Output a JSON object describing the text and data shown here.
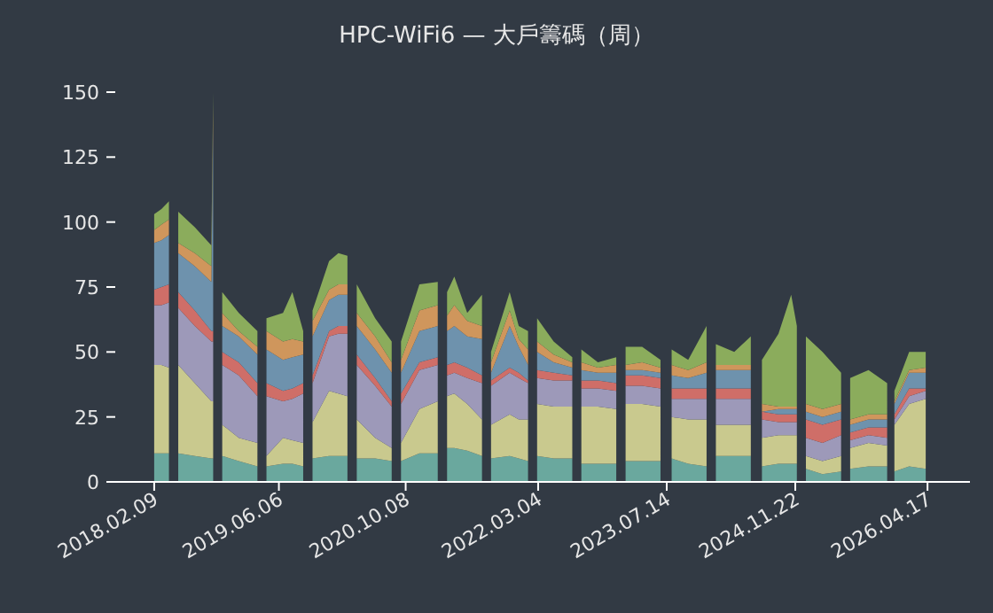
{
  "chart_data": {
    "type": "area",
    "stacked": true,
    "title": "HPC-WiFi6 — 大戶籌碼（周）",
    "x": [
      "2018-02-09",
      "2018-03-09",
      "2018-04-07",
      "2018-04-25",
      "2018-05-13",
      "2018-07-16",
      "2018-09-18",
      "2018-09-25",
      "2018-10-13",
      "2018-10-30",
      "2019-01-02",
      "2019-03-15",
      "2019-04-01",
      "2019-04-19",
      "2019-06-22",
      "2019-07-28",
      "2019-09-08",
      "2019-09-26",
      "2019-10-14",
      "2019-12-17",
      "2020-01-22",
      "2020-02-26",
      "2020-03-15",
      "2020-04-02",
      "2020-06-12",
      "2020-08-15",
      "2020-09-02",
      "2020-09-20",
      "2020-11-30",
      "2021-02-09",
      "2021-02-27",
      "2021-03-17",
      "2021-04-14",
      "2021-06-03",
      "2021-07-30",
      "2021-08-17",
      "2021-09-03",
      "2021-11-14",
      "2021-12-19",
      "2022-01-24",
      "2022-02-11",
      "2022-02-28",
      "2022-05-03",
      "2022-07-14",
      "2022-07-31",
      "2022-08-18",
      "2022-10-21",
      "2022-12-31",
      "2023-01-18",
      "2023-02-05",
      "2023-04-10",
      "2023-06-20",
      "2023-07-12",
      "2023-08-02",
      "2023-10-05",
      "2023-12-15",
      "2024-01-02",
      "2024-01-20",
      "2024-03-31",
      "2024-06-03",
      "2024-06-24",
      "2024-07-16",
      "2024-09-18",
      "2024-11-06",
      "2024-11-28",
      "2024-12-16",
      "2025-01-02",
      "2025-03-07",
      "2025-05-18",
      "2025-06-04",
      "2025-06-22",
      "2025-09-01",
      "2025-11-12",
      "2025-11-26",
      "2025-12-10",
      "2026-02-05",
      "2026-04-10"
    ],
    "xlim": [
      "2017-08-22",
      "2026-09-28"
    ],
    "xticks": [
      {
        "value": "2018-02-09",
        "label": "2018.02.09"
      },
      {
        "value": "2019-06-06",
        "label": "2019.06.06"
      },
      {
        "value": "2020-10-08",
        "label": "2020.10.08"
      },
      {
        "value": "2022-03-04",
        "label": "2022.03.04"
      },
      {
        "value": "2023-07-14",
        "label": "2023.07.14"
      },
      {
        "value": "2024-11-22",
        "label": "2024.11.22"
      },
      {
        "value": "2026-04-17",
        "label": "2026.04.17"
      }
    ],
    "ylim": [
      0,
      150
    ],
    "yticks": [
      0,
      25,
      50,
      75,
      100,
      125,
      150
    ],
    "series": [
      {
        "color": "#6aa89e",
        "values": [
          11,
          11,
          11,
          null,
          11,
          10,
          9,
          9,
          null,
          10,
          8,
          6,
          null,
          6,
          7,
          7,
          6,
          null,
          9,
          10,
          10,
          10,
          null,
          9,
          9,
          8,
          null,
          8,
          11,
          11,
          null,
          13,
          13,
          12,
          10,
          null,
          9,
          10,
          9,
          8,
          null,
          10,
          9,
          9,
          null,
          7,
          7,
          7,
          null,
          8,
          8,
          8,
          null,
          9,
          7,
          6,
          null,
          10,
          10,
          10,
          null,
          6,
          7,
          7,
          7,
          null,
          5,
          3,
          4,
          null,
          5,
          6,
          6,
          null,
          4,
          6,
          5
        ]
      },
      {
        "color": "#c9c98e",
        "values": [
          34,
          34,
          33,
          null,
          34,
          28,
          22,
          22,
          null,
          12,
          9,
          9,
          null,
          4,
          10,
          9,
          9,
          null,
          14,
          25,
          24,
          23,
          null,
          15,
          8,
          5,
          null,
          7,
          17,
          20,
          null,
          20,
          21,
          18,
          14,
          null,
          13,
          16,
          15,
          16,
          null,
          20,
          20,
          20,
          null,
          22,
          22,
          21,
          null,
          22,
          22,
          21,
          null,
          16,
          17,
          18,
          null,
          12,
          12,
          12,
          null,
          11,
          11,
          11,
          11,
          null,
          5,
          5,
          6,
          null,
          8,
          9,
          8,
          null,
          18,
          24,
          27
        ]
      },
      {
        "color": "#9d99b9",
        "values": [
          23,
          23,
          25,
          null,
          22,
          22,
          23,
          23,
          null,
          23,
          24,
          18,
          null,
          23,
          14,
          16,
          19,
          null,
          15,
          21,
          23,
          24,
          null,
          21,
          20,
          16,
          null,
          15,
          15,
          14,
          null,
          8,
          8,
          10,
          14,
          null,
          15,
          16,
          16,
          14,
          null,
          10,
          10,
          10,
          null,
          7,
          7,
          7,
          null,
          7,
          7,
          7,
          null,
          7,
          8,
          8,
          null,
          10,
          10,
          10,
          null,
          7,
          5,
          5,
          5,
          null,
          7,
          7,
          8,
          null,
          3,
          3,
          3,
          null,
          2,
          3,
          3
        ]
      },
      {
        "color": "#cf6e68",
        "values": [
          6,
          7,
          7,
          null,
          6,
          6,
          4,
          4,
          null,
          5,
          5,
          5,
          null,
          5,
          4,
          4,
          4,
          null,
          3,
          2,
          3,
          3,
          null,
          4,
          3,
          2,
          null,
          4,
          3,
          3,
          null,
          4,
          4,
          4,
          3,
          null,
          2,
          2,
          2,
          1,
          null,
          3,
          3,
          2,
          null,
          3,
          3,
          3,
          null,
          4,
          4,
          4,
          null,
          4,
          4,
          4,
          null,
          4,
          4,
          4,
          null,
          3,
          3,
          3,
          3,
          null,
          7,
          7,
          6,
          null,
          3,
          3,
          4,
          null,
          2,
          3,
          1
        ]
      },
      {
        "color": "#6e92ad",
        "values": [
          18,
          18,
          19,
          null,
          15,
          17,
          19,
          79,
          null,
          10,
          10,
          11,
          null,
          13,
          12,
          12,
          11,
          null,
          15,
          12,
          12,
          12,
          null,
          11,
          11,
          11,
          null,
          8,
          12,
          12,
          null,
          13,
          14,
          12,
          14,
          null,
          3,
          16,
          10,
          6,
          null,
          7,
          4,
          3,
          null,
          4,
          3,
          4,
          null,
          2,
          2,
          2,
          null,
          5,
          4,
          6,
          null,
          7,
          7,
          7,
          null,
          0,
          2,
          2,
          2,
          null,
          3,
          3,
          3,
          null,
          3,
          3,
          3,
          null,
          4,
          6,
          6
        ]
      },
      {
        "color": "#cf965c",
        "values": [
          5,
          6,
          6,
          null,
          4,
          5,
          6,
          8,
          null,
          5,
          2,
          3,
          null,
          7,
          7,
          7,
          5,
          null,
          6,
          4,
          4,
          4,
          null,
          5,
          5,
          4,
          null,
          5,
          8,
          8,
          null,
          6,
          8,
          6,
          5,
          null,
          4,
          6,
          3,
          6,
          null,
          4,
          3,
          2,
          null,
          3,
          2,
          3,
          null,
          2,
          3,
          2,
          null,
          4,
          3,
          4,
          null,
          2,
          2,
          2,
          null,
          3,
          1,
          1,
          1,
          null,
          3,
          3,
          3,
          null,
          2,
          2,
          2,
          null,
          1,
          1,
          2
        ]
      },
      {
        "color": "#8bac5c",
        "values": [
          6,
          6,
          7,
          null,
          12,
          10,
          8,
          5,
          null,
          8,
          7,
          6,
          null,
          5,
          11,
          18,
          4,
          null,
          4,
          11,
          12,
          11,
          null,
          11,
          7,
          8,
          null,
          7,
          10,
          9,
          null,
          9,
          11,
          3,
          12,
          null,
          4,
          7,
          5,
          7,
          null,
          9,
          5,
          2,
          null,
          5,
          2,
          3,
          null,
          7,
          6,
          3,
          null,
          6,
          4,
          14,
          null,
          8,
          5,
          11,
          null,
          17,
          28,
          43,
          31,
          null,
          26,
          22,
          12,
          null,
          16,
          17,
          12,
          null,
          4,
          7,
          6
        ]
      }
    ]
  }
}
